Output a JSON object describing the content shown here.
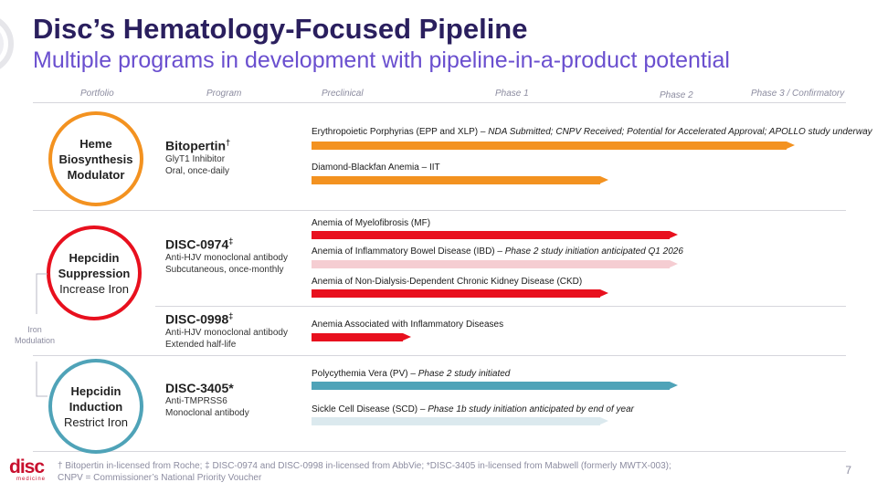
{
  "header": {
    "title": "Disc’s Hematology-Focused Pipeline",
    "subtitle": "Multiple programs in development with pipeline-in-a-product potential"
  },
  "columns": [
    "Portfolio",
    "Program",
    "Preclinical",
    "Phase 1",
    "Phase 2",
    "Phase 3 / Confirmatory"
  ],
  "portfolio": [
    {
      "line1": "Heme",
      "line2": "Biosynthesis",
      "line3": "Modulator",
      "color": "#f39220"
    },
    {
      "line1": "Hepcidin",
      "line2": "Suppression",
      "line3": "Increase Iron",
      "color": "#e8101e"
    },
    {
      "line1": "Hepcidin",
      "line2": "Induction",
      "line3": "Restrict Iron",
      "color": "#4fa3b8"
    }
  ],
  "iron_modulation": "Iron Modulation",
  "programs": [
    {
      "name": "Bitopertin",
      "mark": "†",
      "desc1": "GlyT1 Inhibitor",
      "desc2": "Oral, once-daily"
    },
    {
      "name": "DISC-0974",
      "mark": "‡",
      "desc1": "Anti-HJV monoclonal antibody",
      "desc2": "Subcutaneous, once-monthly"
    },
    {
      "name": "DISC-0998",
      "mark": "‡",
      "desc1": "Anti-HJV monoclonal antibody",
      "desc2": "Extended half-life"
    },
    {
      "name": "DISC-3405*",
      "mark": "",
      "desc1": "Anti-TMPRSS6",
      "desc2": "Monoclonal antibody"
    }
  ],
  "indications": [
    {
      "label": "Erythropoietic Porphyrias (EPP and XLP) – ",
      "note": "NDA Submitted; CNPV Received; Potential for Accelerated Approval; APOLLO study underway",
      "progress_stage": "Phase 3 / Confirmatory",
      "color": "#f39220"
    },
    {
      "label": "Diamond-Blackfan Anemia – IIT",
      "note": "",
      "progress_stage": "Phase 1",
      "color": "#f39220"
    },
    {
      "label": "Anemia of Myelofibrosis (MF)",
      "note": "",
      "progress_stage": "Phase 2",
      "color": "#e8101e"
    },
    {
      "label": "Anemia of Inflammatory Bowel Disease (IBD) – ",
      "note": "Phase 2 study initiation anticipated Q1 2026",
      "progress_stage": "Phase 2",
      "color": "#f5cdd2"
    },
    {
      "label": "Anemia of Non-Dialysis-Dependent Chronic Kidney Disease (CKD)",
      "note": "",
      "progress_stage": "Phase 1",
      "color": "#e8101e"
    },
    {
      "label": "Anemia Associated with Inflammatory Diseases",
      "note": "",
      "progress_stage": "Preclinical",
      "color": "#e8101e"
    },
    {
      "label": "Polycythemia Vera (PV) – ",
      "note": "Phase 2 study initiated",
      "progress_stage": "Phase 2",
      "color": "#4fa3b8"
    },
    {
      "label": "Sickle Cell Disease (SCD) – ",
      "note": "Phase 1b study initiation anticipated by end of year",
      "progress_stage": "Phase 1",
      "color": "#dbe9ee"
    }
  ],
  "footnotes": {
    "line1": "† Bitopertin in-licensed from Roche; ‡ DISC-0974 and DISC-0998 in-licensed from AbbVie; *DISC-3405 in-licensed from Mabwell (formerly MWTX-003);",
    "line2": "CNPV = Commissioner’s National Priority Voucher"
  },
  "page_number": "7",
  "logo": {
    "name": "disc",
    "tagline": "medicine"
  }
}
